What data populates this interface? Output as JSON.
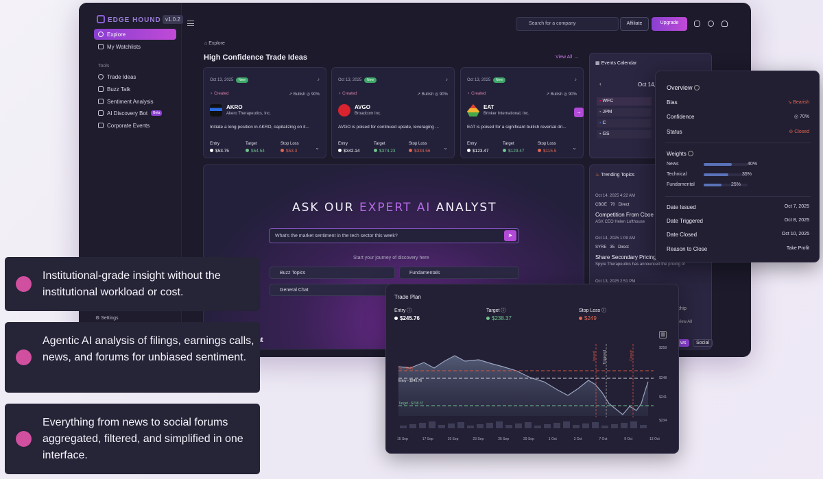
{
  "sidebar": {
    "logo": "EDGE HOUND",
    "version": "v1.0.2",
    "nav": [
      {
        "label": "Explore",
        "icon": "compass-icon"
      },
      {
        "label": "My Watchlists",
        "icon": "star-icon"
      }
    ],
    "tools_heading": "Tools",
    "tools": [
      {
        "label": "Trade Ideas",
        "icon": "lightbulb-icon"
      },
      {
        "label": "Buzz Talk",
        "icon": "chat-icon"
      },
      {
        "label": "Sentiment Analysis",
        "icon": "bars-icon"
      },
      {
        "label": "AI Discovery Bot",
        "icon": "robot-icon",
        "badge": "Beta"
      },
      {
        "label": "Corporate Events",
        "icon": "calendar-icon"
      }
    ],
    "settings": "Settings"
  },
  "topbar": {
    "search_placeholder": "Search for a company",
    "affiliate": "Affiliate",
    "upgrade": "Upgrade"
  },
  "breadcrumb": "Explore",
  "section_title": "High Confidence Trade Ideas",
  "view_all": "View All",
  "trade_cards": [
    {
      "date": "Oct 13, 2025",
      "badge": "New",
      "status": "Created",
      "bias": "Bullish",
      "confidence": "90%",
      "ticker": "AKRO",
      "company": "Akero Therapeutics, Inc.",
      "desc": "Initiate a long position in AKRO, capitalizing on it...",
      "entry_label": "Entry",
      "target_label": "Target",
      "stop_label": "Stop Loss",
      "entry": "$53.75",
      "target": "$54.54",
      "stop": "$53.3"
    },
    {
      "date": "Oct 13, 2025",
      "badge": "New",
      "status": "Created",
      "bias": "Bullish",
      "confidence": "90%",
      "ticker": "AVGO",
      "company": "Broadcom Inc.",
      "desc": "AVGO is poised for continued upside, leveraging ...",
      "entry_label": "Entry",
      "target_label": "Target",
      "stop_label": "Stop Loss",
      "entry": "$342.14",
      "target": "$374.23",
      "stop": "$334.56"
    },
    {
      "date": "Oct 13, 2025",
      "badge": "New",
      "status": "Created",
      "bias": "Bullish",
      "confidence": "90%",
      "ticker": "EAT",
      "company": "Brinker International, Inc.",
      "desc": "EAT is poised for a significant bullish reversal dri...",
      "entry_label": "Entry",
      "target_label": "Target",
      "stop_label": "Stop Loss",
      "entry": "$123.47",
      "target": "$129.47",
      "stop": "$115.5"
    }
  ],
  "events": {
    "title": "Events Calendar",
    "date": "Oct 14,",
    "tickers": [
      "WFC",
      "JPM",
      "C",
      "GS"
    ]
  },
  "trending": {
    "title": "Trending Topics",
    "items": [
      {
        "time": "Oct 14, 2025 4:22 AM",
        "tag": "CBOE",
        "count": "70",
        "type": "Direct",
        "headline": "Competition From Cboe",
        "sub": "ASX CEO Helen Lofthouse"
      },
      {
        "time": "Oct 14, 2025 1:09 AM",
        "tag": "SYRE",
        "count": "35",
        "type": "Direct",
        "headline": "Share Secondary Pricing",
        "sub": "Spyre Therapeutics has announced the pricing of"
      },
      {
        "time": "Oct 13, 2025 2:51 PM",
        "tag": "",
        "count": "",
        "type": "",
        "headline": "",
        "sub": ""
      }
    ],
    "frag_chip": "chip",
    "frag_view": "View All",
    "tab_news": "ws",
    "tab_social": "Social"
  },
  "ask": {
    "title_a": "ASK OUR ",
    "title_b": "EXPERT AI",
    "title_c": " ANALYST",
    "input_placeholder": "What's the market sentiment in the tech sector this week?",
    "journey": "Start your journey of discovery here",
    "chips": [
      "Buzz Topics",
      "Fundamentals",
      "General Chat"
    ]
  },
  "insight_fragment": "ght",
  "overview": {
    "title": "Overview",
    "bias_label": "Bias",
    "bias_value": "Bearish",
    "confidence_label": "Confidence",
    "confidence_value": "70%",
    "status_label": "Status",
    "status_value": "Closed",
    "weights_label": "Weights",
    "weights": [
      {
        "label": "News",
        "pct": "40%",
        "fraction": 0.4
      },
      {
        "label": "Technical",
        "pct": "35%",
        "fraction": 0.35
      },
      {
        "label": "Fundamental",
        "pct": "25%",
        "fraction": 0.25
      }
    ],
    "rows": [
      {
        "label": "Date Issued",
        "value": "Oct 7, 2025"
      },
      {
        "label": "Date Triggered",
        "value": "Oct 8, 2025"
      },
      {
        "label": "Date Closed",
        "value": "Oct 10, 2025"
      },
      {
        "label": "Reason to Close",
        "value": "Take Profit"
      }
    ]
  },
  "trade_plan": {
    "title": "Trade Plan",
    "entry_label": "Entry",
    "entry_value": "$245.76",
    "target_label": "Target",
    "target_value": "$238.37",
    "stop_label": "Stop Loss",
    "stop_value": "$249",
    "line_stop": "SL - $249",
    "line_entry": "Entry - $245.76",
    "line_target": "Target - $238.37",
    "x_ticks": [
      "15 Sep",
      "17 Sep",
      "19 Sep",
      "23 Sep",
      "25 Sep",
      "29 Sep",
      "1 Oct",
      "3 Oct",
      "7 Oct",
      "9 Oct",
      "13 Oct"
    ],
    "y_ticks": [
      "$258",
      "$248",
      "$241",
      "$234"
    ],
    "markers": [
      "Issued",
      "Triggered",
      "Closed"
    ]
  },
  "features": [
    "Institutional-grade insight without the institutional workload or cost.",
    "Agentic AI analysis of filings, earnings calls, news, and forums for unbiased sentiment.",
    "Everything from news to social forums aggregated, filtered, and simplified in one interface."
  ],
  "colors": {
    "accent": "#b24ad8",
    "green": "#6fc38c",
    "red": "#e0664f",
    "bullet": "#d04f9f"
  }
}
